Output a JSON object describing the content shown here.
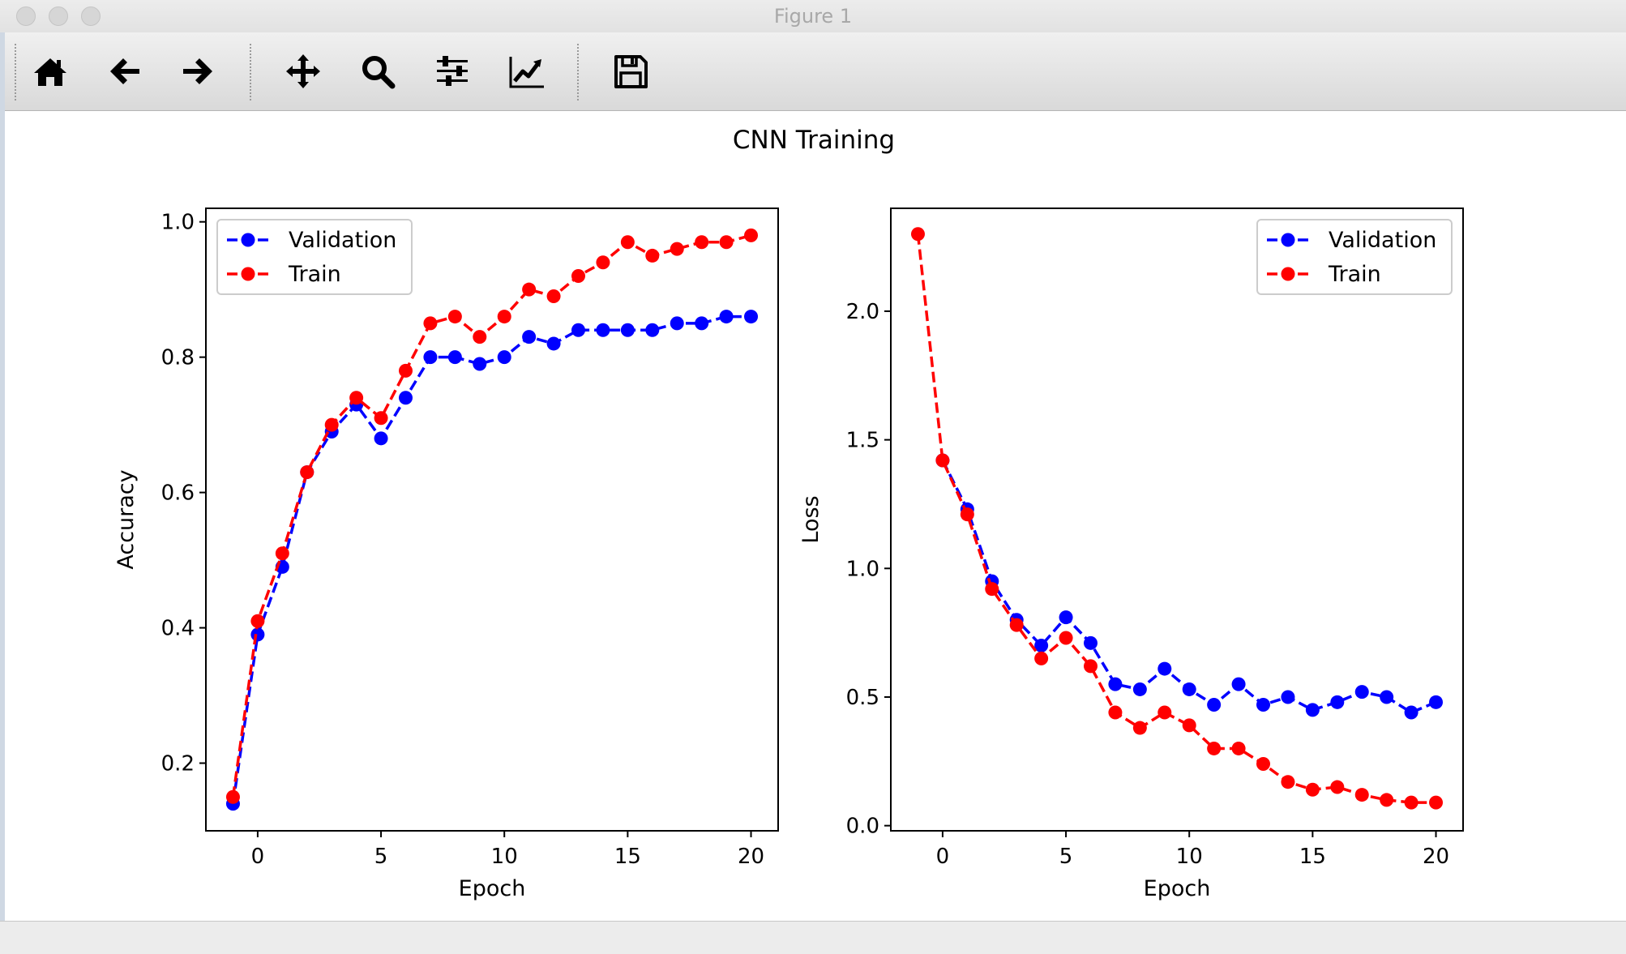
{
  "window": {
    "title": "Figure 1"
  },
  "toolbar": {
    "tools": [
      {
        "name": "home-icon"
      },
      {
        "name": "back-arrow-icon"
      },
      {
        "name": "forward-arrow-icon"
      },
      {
        "name": "pan-move-icon"
      },
      {
        "name": "zoom-magnifier-icon"
      },
      {
        "name": "subplots-config-icon"
      },
      {
        "name": "edit-axis-curves-icon"
      },
      {
        "name": "save-floppy-icon"
      }
    ]
  },
  "figure": {
    "suptitle": "CNN Training"
  },
  "chart_data": [
    {
      "type": "line",
      "title": "",
      "xlabel": "Epoch",
      "ylabel": "Accuracy",
      "xlim": [
        -2.1,
        21.1
      ],
      "ylim": [
        0.1,
        1.02
      ],
      "xticks": [
        "0",
        "5",
        "10",
        "15",
        "20"
      ],
      "yticks": [
        "0.2",
        "0.4",
        "0.6",
        "0.8",
        "1.0"
      ],
      "legend": "top-left",
      "x": [
        -1,
        0,
        1,
        2,
        3,
        4,
        5,
        6,
        7,
        8,
        9,
        10,
        11,
        12,
        13,
        14,
        15,
        16,
        17,
        18,
        19,
        20
      ],
      "series": [
        {
          "name": "Validation",
          "color": "#0000ff",
          "values": [
            0.14,
            0.39,
            0.49,
            0.63,
            0.69,
            0.73,
            0.68,
            0.74,
            0.8,
            0.8,
            0.79,
            0.8,
            0.83,
            0.82,
            0.84,
            0.84,
            0.84,
            0.84,
            0.85,
            0.85,
            0.86,
            0.86
          ]
        },
        {
          "name": "Train",
          "color": "#ff0000",
          "values": [
            0.15,
            0.41,
            0.51,
            0.63,
            0.7,
            0.74,
            0.71,
            0.78,
            0.85,
            0.86,
            0.83,
            0.86,
            0.9,
            0.89,
            0.92,
            0.94,
            0.97,
            0.95,
            0.96,
            0.97,
            0.97,
            0.98
          ]
        }
      ]
    },
    {
      "type": "line",
      "title": "",
      "xlabel": "Epoch",
      "ylabel": "Loss",
      "xlim": [
        -2.1,
        21.1
      ],
      "ylim": [
        -0.02,
        2.4
      ],
      "xticks": [
        "0",
        "5",
        "10",
        "15",
        "20"
      ],
      "yticks": [
        "0.0",
        "0.5",
        "1.0",
        "1.5",
        "2.0"
      ],
      "legend": "top-right",
      "x": [
        -1,
        0,
        1,
        2,
        3,
        4,
        5,
        6,
        7,
        8,
        9,
        10,
        11,
        12,
        13,
        14,
        15,
        16,
        17,
        18,
        19,
        20
      ],
      "series": [
        {
          "name": "Validation",
          "color": "#0000ff",
          "values": [
            null,
            1.42,
            1.23,
            0.95,
            0.8,
            0.7,
            0.81,
            0.71,
            0.55,
            0.53,
            0.61,
            0.53,
            0.47,
            0.55,
            0.47,
            0.5,
            0.45,
            0.48,
            0.52,
            0.5,
            0.44,
            0.48
          ]
        },
        {
          "name": "Train",
          "color": "#ff0000",
          "values": [
            2.3,
            1.42,
            1.21,
            0.92,
            0.78,
            0.65,
            0.73,
            0.62,
            0.44,
            0.38,
            0.44,
            0.39,
            0.3,
            0.3,
            0.24,
            0.17,
            0.14,
            0.15,
            0.12,
            0.1,
            0.09,
            0.09
          ]
        }
      ]
    }
  ]
}
